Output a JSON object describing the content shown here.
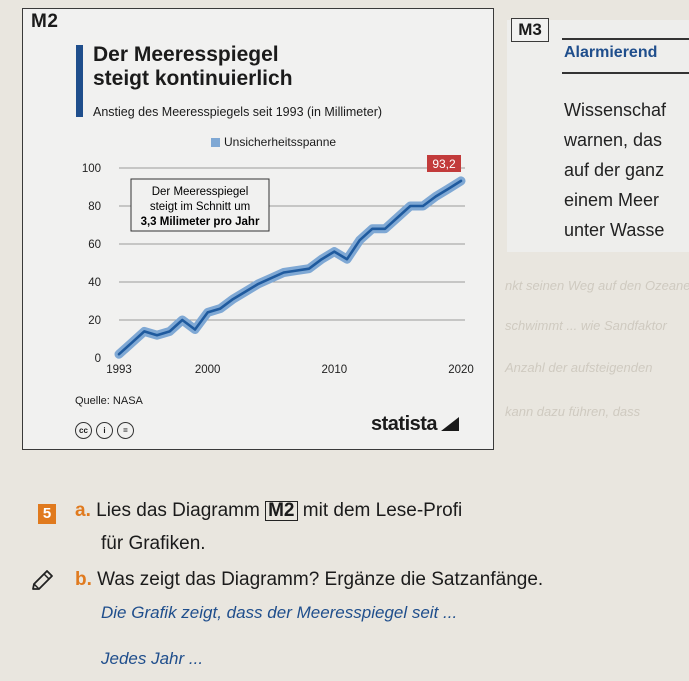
{
  "m2": {
    "tag": "M2",
    "title_line1": "Der Meeresspiegel",
    "title_line2": "steigt kontinuierlich",
    "subtitle": "Anstieg des Meeresspiegels seit 1993 (in Millimeter)",
    "legend": "Unsicherheitsspanne",
    "source": "Quelle: NASA",
    "brand": "statista",
    "icons": [
      "cc-icon",
      "attribution-icon",
      "noderivs-icon"
    ],
    "colors": {
      "line": "#1f5a9e",
      "band": "#7fa8d4",
      "accent_bar": "#1f4e8c"
    }
  },
  "chart_data": {
    "type": "line",
    "title": "Der Meeresspiegel steigt kontinuierlich",
    "subtitle": "Anstieg des Meeresspiegels seit 1993 (in Millimeter)",
    "xlabel": "",
    "ylabel": "",
    "xlim": [
      1993,
      2020
    ],
    "ylim": [
      0,
      100
    ],
    "yticks": [
      0,
      20,
      40,
      60,
      80,
      100
    ],
    "xtick_labels": [
      "1993",
      "2000",
      "2010",
      "2020"
    ],
    "ytick_labels": [
      "0",
      "20",
      "40",
      "60",
      "80",
      "100"
    ],
    "grid": true,
    "legend_position": "top-center",
    "series": [
      {
        "name": "Unsicherheitsspanne",
        "x": [
          1993,
          1994,
          1995,
          1996,
          1997,
          1998,
          1999,
          2000,
          2001,
          2002,
          2003,
          2004,
          2005,
          2006,
          2007,
          2008,
          2009,
          2010,
          2011,
          2012,
          2013,
          2014,
          2015,
          2016,
          2017,
          2018,
          2019,
          2020
        ],
        "y": [
          2,
          8,
          14,
          12,
          14,
          20,
          15,
          24,
          26,
          31,
          35,
          39,
          42,
          45,
          46,
          47,
          52,
          56,
          52,
          62,
          68,
          68,
          74,
          80,
          80,
          85,
          89,
          93.2
        ]
      }
    ],
    "annotations": {
      "callout_line1": "Der Meeresspiegel",
      "callout_line2": "steigt im Schnitt um",
      "callout_line3": "3,3 Milimeter pro Jahr",
      "end_label": "93,2"
    }
  },
  "m3": {
    "tag": "M3",
    "heading": "Alarmierend",
    "lines": [
      "Wissenschaf",
      "warnen, das",
      "auf der ganz",
      "einem Meer",
      "unter Wasse"
    ]
  },
  "task": {
    "number": "5",
    "a_marker": "a.",
    "a_text_1": "Lies das Diagramm",
    "a_ref": "M2",
    "a_text_2": "mit dem Lese-Profi",
    "a_text_3": "für Grafiken.",
    "b_marker": "b.",
    "b_text": "Was zeigt das Diagramm? Ergänze die Satzanfänge.",
    "stem_1": "Die Grafik zeigt, dass der Meeresspiegel seit ...",
    "stem_2": "Jedes Jahr ..."
  }
}
